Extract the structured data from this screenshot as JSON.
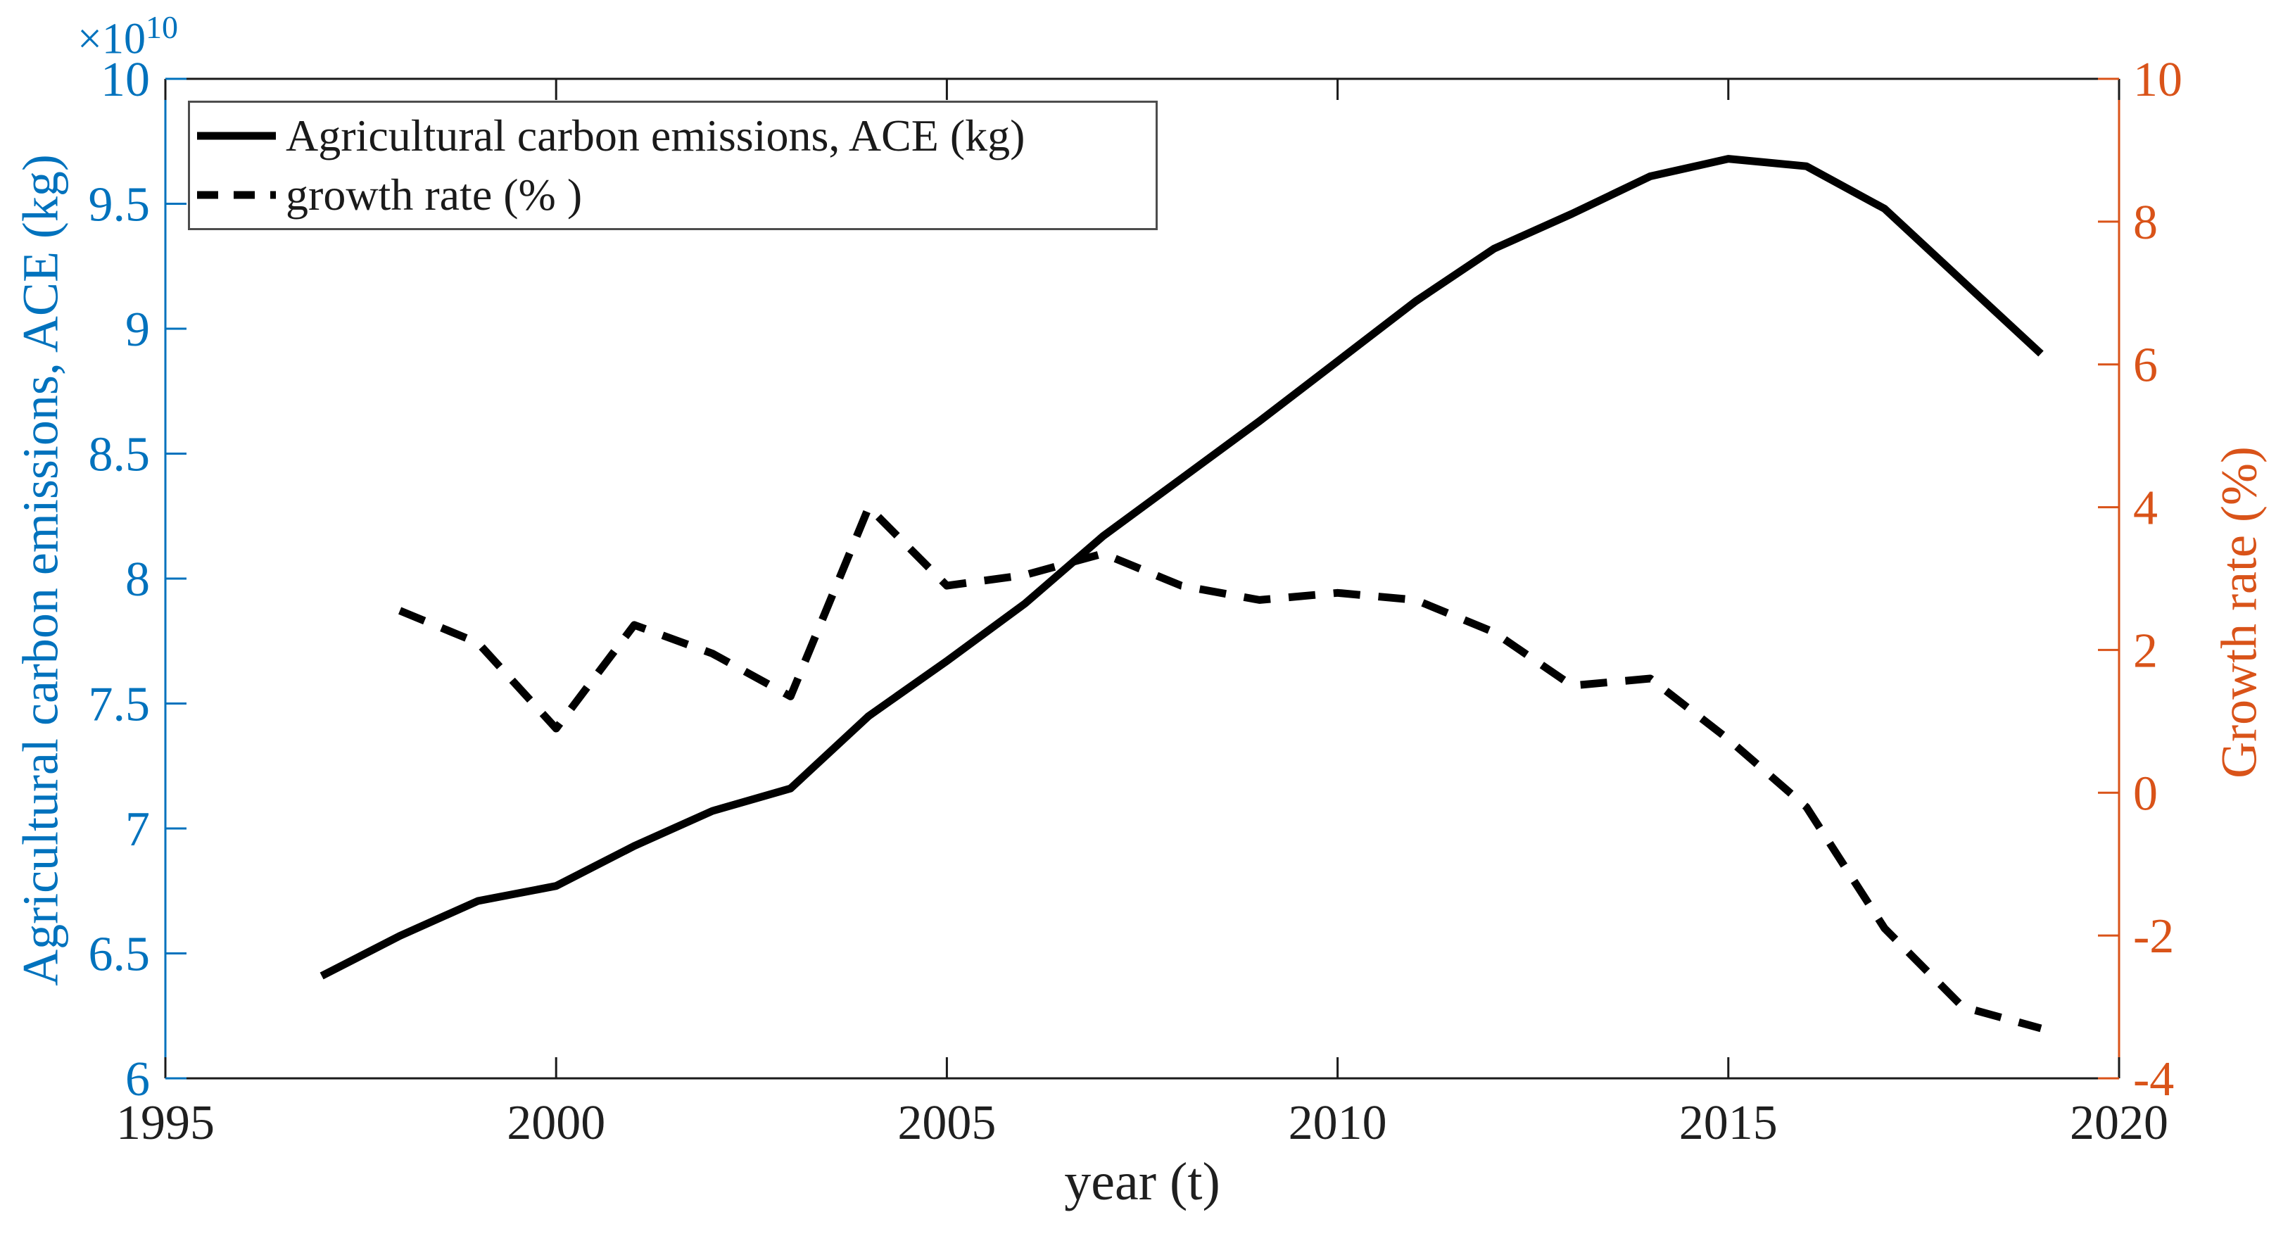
{
  "figure": {
    "axes": {
      "x": {
        "label": "year (t)",
        "tick_labels": [
          "1995",
          "2000",
          "2005",
          "2010",
          "2015",
          "2020"
        ],
        "tick_values": [
          1995,
          2000,
          2005,
          2010,
          2015,
          2020
        ],
        "range": [
          1995,
          2020
        ],
        "color": "#1f1f1f"
      },
      "left": {
        "label": "Agricultural carbon emissions, ACE (kg)",
        "multiplier_base": "×10",
        "multiplier_exp": "10",
        "tick_labels": [
          "6",
          "6.5",
          "7",
          "7.5",
          "8",
          "8.5",
          "9",
          "9.5",
          "10"
        ],
        "tick_values": [
          6,
          6.5,
          7,
          7.5,
          8,
          8.5,
          9,
          9.5,
          10
        ],
        "range": [
          6,
          10
        ],
        "color": "#0072BD"
      },
      "right": {
        "label": "Growth rate (%)",
        "tick_labels": [
          "-4",
          "-2",
          "0",
          "2",
          "4",
          "6",
          "8",
          "10"
        ],
        "tick_values": [
          -4,
          -2,
          0,
          2,
          4,
          6,
          8,
          10
        ],
        "range": [
          -4,
          10
        ],
        "color": "#D95319"
      }
    },
    "legend": {
      "items": [
        {
          "label": "Agricultural carbon emissions, ACE (kg)",
          "line_style": "solid"
        },
        {
          "label": "growth rate (% )",
          "line_style": "dashed"
        }
      ],
      "position": "top-left"
    }
  },
  "chart_data": {
    "type": "line",
    "title": "",
    "xlabel": "year (t)",
    "ylabel_left": "Agricultural carbon emissions, ACE (kg)",
    "ylabel_right": "Growth rate (%)",
    "x_range": [
      1995,
      2020
    ],
    "y_left_range_e10_kg": [
      6,
      10
    ],
    "y_right_range_pct": [
      -4,
      10
    ],
    "grid": false,
    "legend_position": "top-left",
    "series": [
      {
        "name": "Agricultural carbon emissions, ACE (kg)",
        "axis": "left",
        "style": "solid",
        "color": "#000000",
        "unit": "×10^10 kg",
        "years": [
          1997,
          1998,
          1999,
          2000,
          2001,
          2002,
          2003,
          2004,
          2005,
          2006,
          2007,
          2008,
          2009,
          2010,
          2011,
          2012,
          2013,
          2014,
          2015,
          2016,
          2017,
          2018,
          2019
        ],
        "values": [
          6.41,
          6.57,
          6.71,
          6.77,
          6.93,
          7.07,
          7.16,
          7.45,
          7.67,
          7.9,
          8.17,
          8.4,
          8.63,
          8.87,
          9.11,
          9.32,
          9.46,
          9.61,
          9.68,
          9.65,
          9.48,
          9.19,
          8.9
        ]
      },
      {
        "name": "growth rate (% )",
        "axis": "right",
        "style": "dashed",
        "color": "#000000",
        "unit": "%",
        "years": [
          1998,
          1999,
          2000,
          2001,
          2002,
          2003,
          2004,
          2005,
          2006,
          2007,
          2008,
          2009,
          2010,
          2011,
          2012,
          2013,
          2014,
          2015,
          2016,
          2017,
          2018,
          2019
        ],
        "values": [
          2.55,
          2.1,
          0.9,
          2.35,
          1.95,
          1.35,
          4.0,
          2.9,
          3.05,
          3.35,
          2.9,
          2.7,
          2.8,
          2.7,
          2.25,
          1.5,
          1.6,
          0.75,
          -0.2,
          -1.9,
          -3.0,
          -3.3
        ]
      }
    ]
  }
}
